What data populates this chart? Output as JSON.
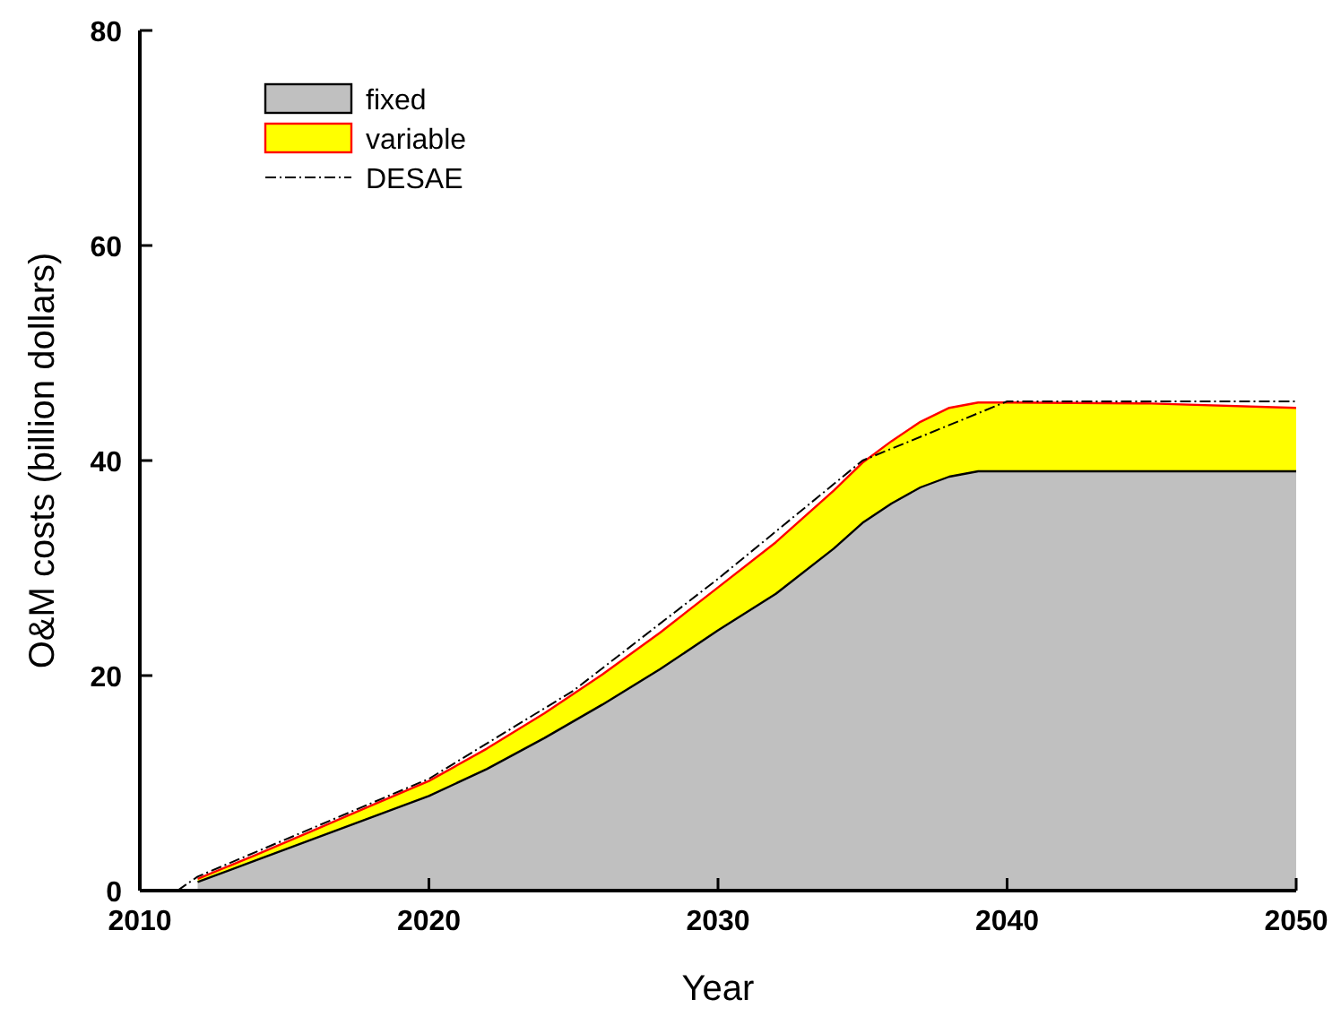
{
  "chart_data": {
    "type": "area",
    "stacked": true,
    "xlabel": "Year",
    "ylabel": "O&M costs (billion dollars)",
    "x": [
      2012,
      2014,
      2016,
      2018,
      2020,
      2022,
      2024,
      2026,
      2028,
      2030,
      2032,
      2034,
      2035,
      2036,
      2037,
      2038,
      2039,
      2040,
      2045,
      2050
    ],
    "series": [
      {
        "name": "fixed",
        "color": "#c0c0c0",
        "values": [
          0.8,
          2.8,
          4.8,
          6.8,
          8.8,
          11.3,
          14.2,
          17.3,
          20.6,
          24.2,
          27.6,
          31.8,
          34.2,
          36.0,
          37.5,
          38.5,
          39,
          39,
          39,
          39
        ]
      },
      {
        "name": "variable",
        "color": "#ffff00",
        "values": [
          0.3,
          0.5,
          0.8,
          1.1,
          1.4,
          1.9,
          2.3,
          2.8,
          3.4,
          4.0,
          4.8,
          5.4,
          5.6,
          5.8,
          6.1,
          6.4,
          6.4,
          6.4,
          6.3,
          5.9
        ]
      },
      {
        "name": "DESAE",
        "type": "line",
        "color": "#000000",
        "line_style": "dashed",
        "x": [
          2011.3,
          2012,
          2020,
          2025,
          2030,
          2035,
          2040,
          2050
        ],
        "values": [
          0,
          1.3,
          10.4,
          18.6,
          29,
          40,
          45.5,
          45.5
        ]
      }
    ],
    "xlim": [
      2010,
      2050
    ],
    "xticks": [
      2010,
      2020,
      2030,
      2040,
      2050
    ],
    "ylim": [
      0,
      80
    ],
    "yticks": [
      0,
      20,
      40,
      60,
      80
    ],
    "legend": "top left",
    "grid": false
  }
}
